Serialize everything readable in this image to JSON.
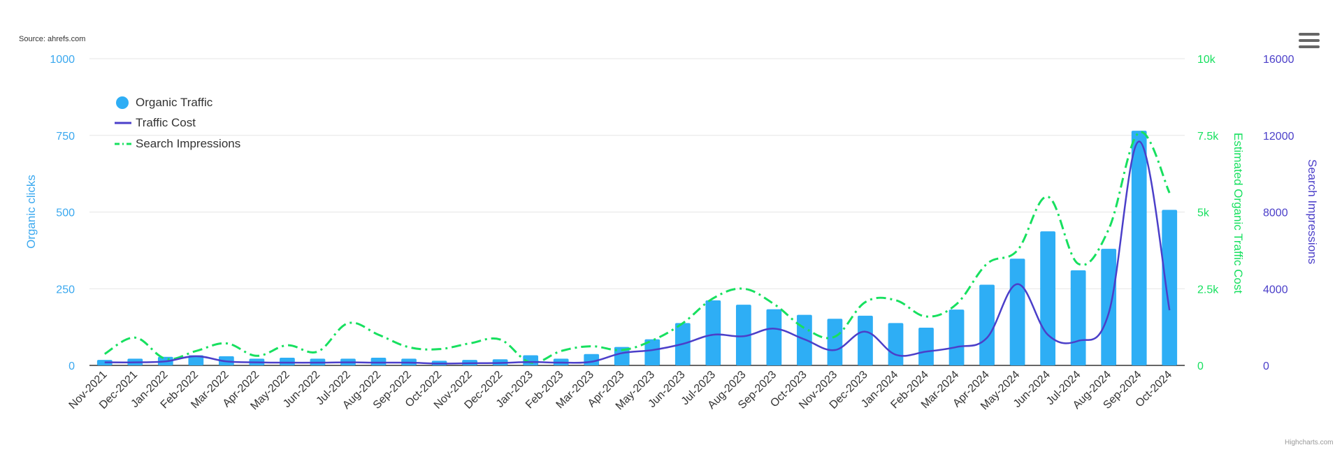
{
  "source_label": "Source: ahrefs.com",
  "credits": "Highcharts.com",
  "menu_icon": "hamburger-menu-icon",
  "colors": {
    "organic_traffic": "#2eaef5",
    "traffic_cost": "#4b3fc9",
    "search_impressions": "#17e05f",
    "left_axis": "#3aa8ef",
    "right_axis_1": "#17e05f",
    "right_axis_2": "#4b3fc9",
    "grid": "#e6e6e6"
  },
  "chart_data": {
    "type": "bar",
    "categories": [
      "Nov-2021",
      "Dec-2021",
      "Jan-2022",
      "Feb-2022",
      "Mar-2022",
      "Apr-2022",
      "May-2022",
      "Jun-2022",
      "Jul-2022",
      "Aug-2022",
      "Sep-2022",
      "Oct-2022",
      "Nov-2022",
      "Dec-2022",
      "Jan-2023",
      "Feb-2023",
      "Mar-2023",
      "Apr-2023",
      "May-2023",
      "Jun-2023",
      "Jul-2023",
      "Aug-2023",
      "Sep-2023",
      "Oct-2023",
      "Nov-2023",
      "Dec-2023",
      "Jan-2024",
      "Feb-2024",
      "Mar-2024",
      "Apr-2024",
      "May-2024",
      "Jun-2024",
      "Jul-2024",
      "Aug-2024",
      "Sep-2024",
      "Oct-2024"
    ],
    "series": [
      {
        "name": "Organic Traffic",
        "type": "column",
        "axis": "left",
        "values": [
          18,
          22,
          28,
          33,
          30,
          22,
          25,
          22,
          22,
          25,
          22,
          15,
          18,
          20,
          33,
          22,
          37,
          60,
          85,
          138,
          212,
          198,
          183,
          165,
          152,
          162,
          138,
          123,
          182,
          263,
          348,
          437,
          310,
          380,
          765,
          507
        ]
      },
      {
        "name": "Traffic Cost",
        "type": "spline",
        "axis": "right-1",
        "values": [
          100,
          100,
          130,
          300,
          130,
          100,
          90,
          90,
          100,
          90,
          90,
          60,
          70,
          80,
          110,
          90,
          120,
          400,
          500,
          700,
          1000,
          950,
          1200,
          850,
          500,
          1100,
          350,
          450,
          600,
          900,
          2650,
          1000,
          800,
          1700,
          7300,
          1800
        ]
      },
      {
        "name": "Search Impressions",
        "type": "dash-dot line",
        "axis": "right-2",
        "values": [
          600,
          1450,
          350,
          750,
          1150,
          500,
          1050,
          720,
          2200,
          1600,
          950,
          850,
          1150,
          1350,
          150,
          750,
          1000,
          800,
          1300,
          2200,
          3500,
          4000,
          3200,
          1950,
          1500,
          3300,
          3400,
          2550,
          3200,
          5300,
          6000,
          8800,
          5300,
          7100,
          12150,
          9000
        ]
      }
    ],
    "y_left": {
      "label": "Organic clicks",
      "ticks": [
        "0",
        "250",
        "500",
        "750",
        "1000"
      ],
      "range": [
        0,
        1000
      ]
    },
    "y_right_1": {
      "label": "Estimated Organic Traffic Cost",
      "ticks": [
        "0",
        "2.5k",
        "5k",
        "7.5k",
        "10k"
      ],
      "range": [
        0,
        10000
      ]
    },
    "y_right_2": {
      "label": "Search Impressions",
      "ticks": [
        "0",
        "4000",
        "8000",
        "12000",
        "16000"
      ],
      "range": [
        0,
        16000
      ]
    },
    "legend": {
      "placement": "top-left",
      "items": [
        "Organic Traffic",
        "Traffic Cost",
        "Search Impressions"
      ]
    },
    "grid": true
  }
}
